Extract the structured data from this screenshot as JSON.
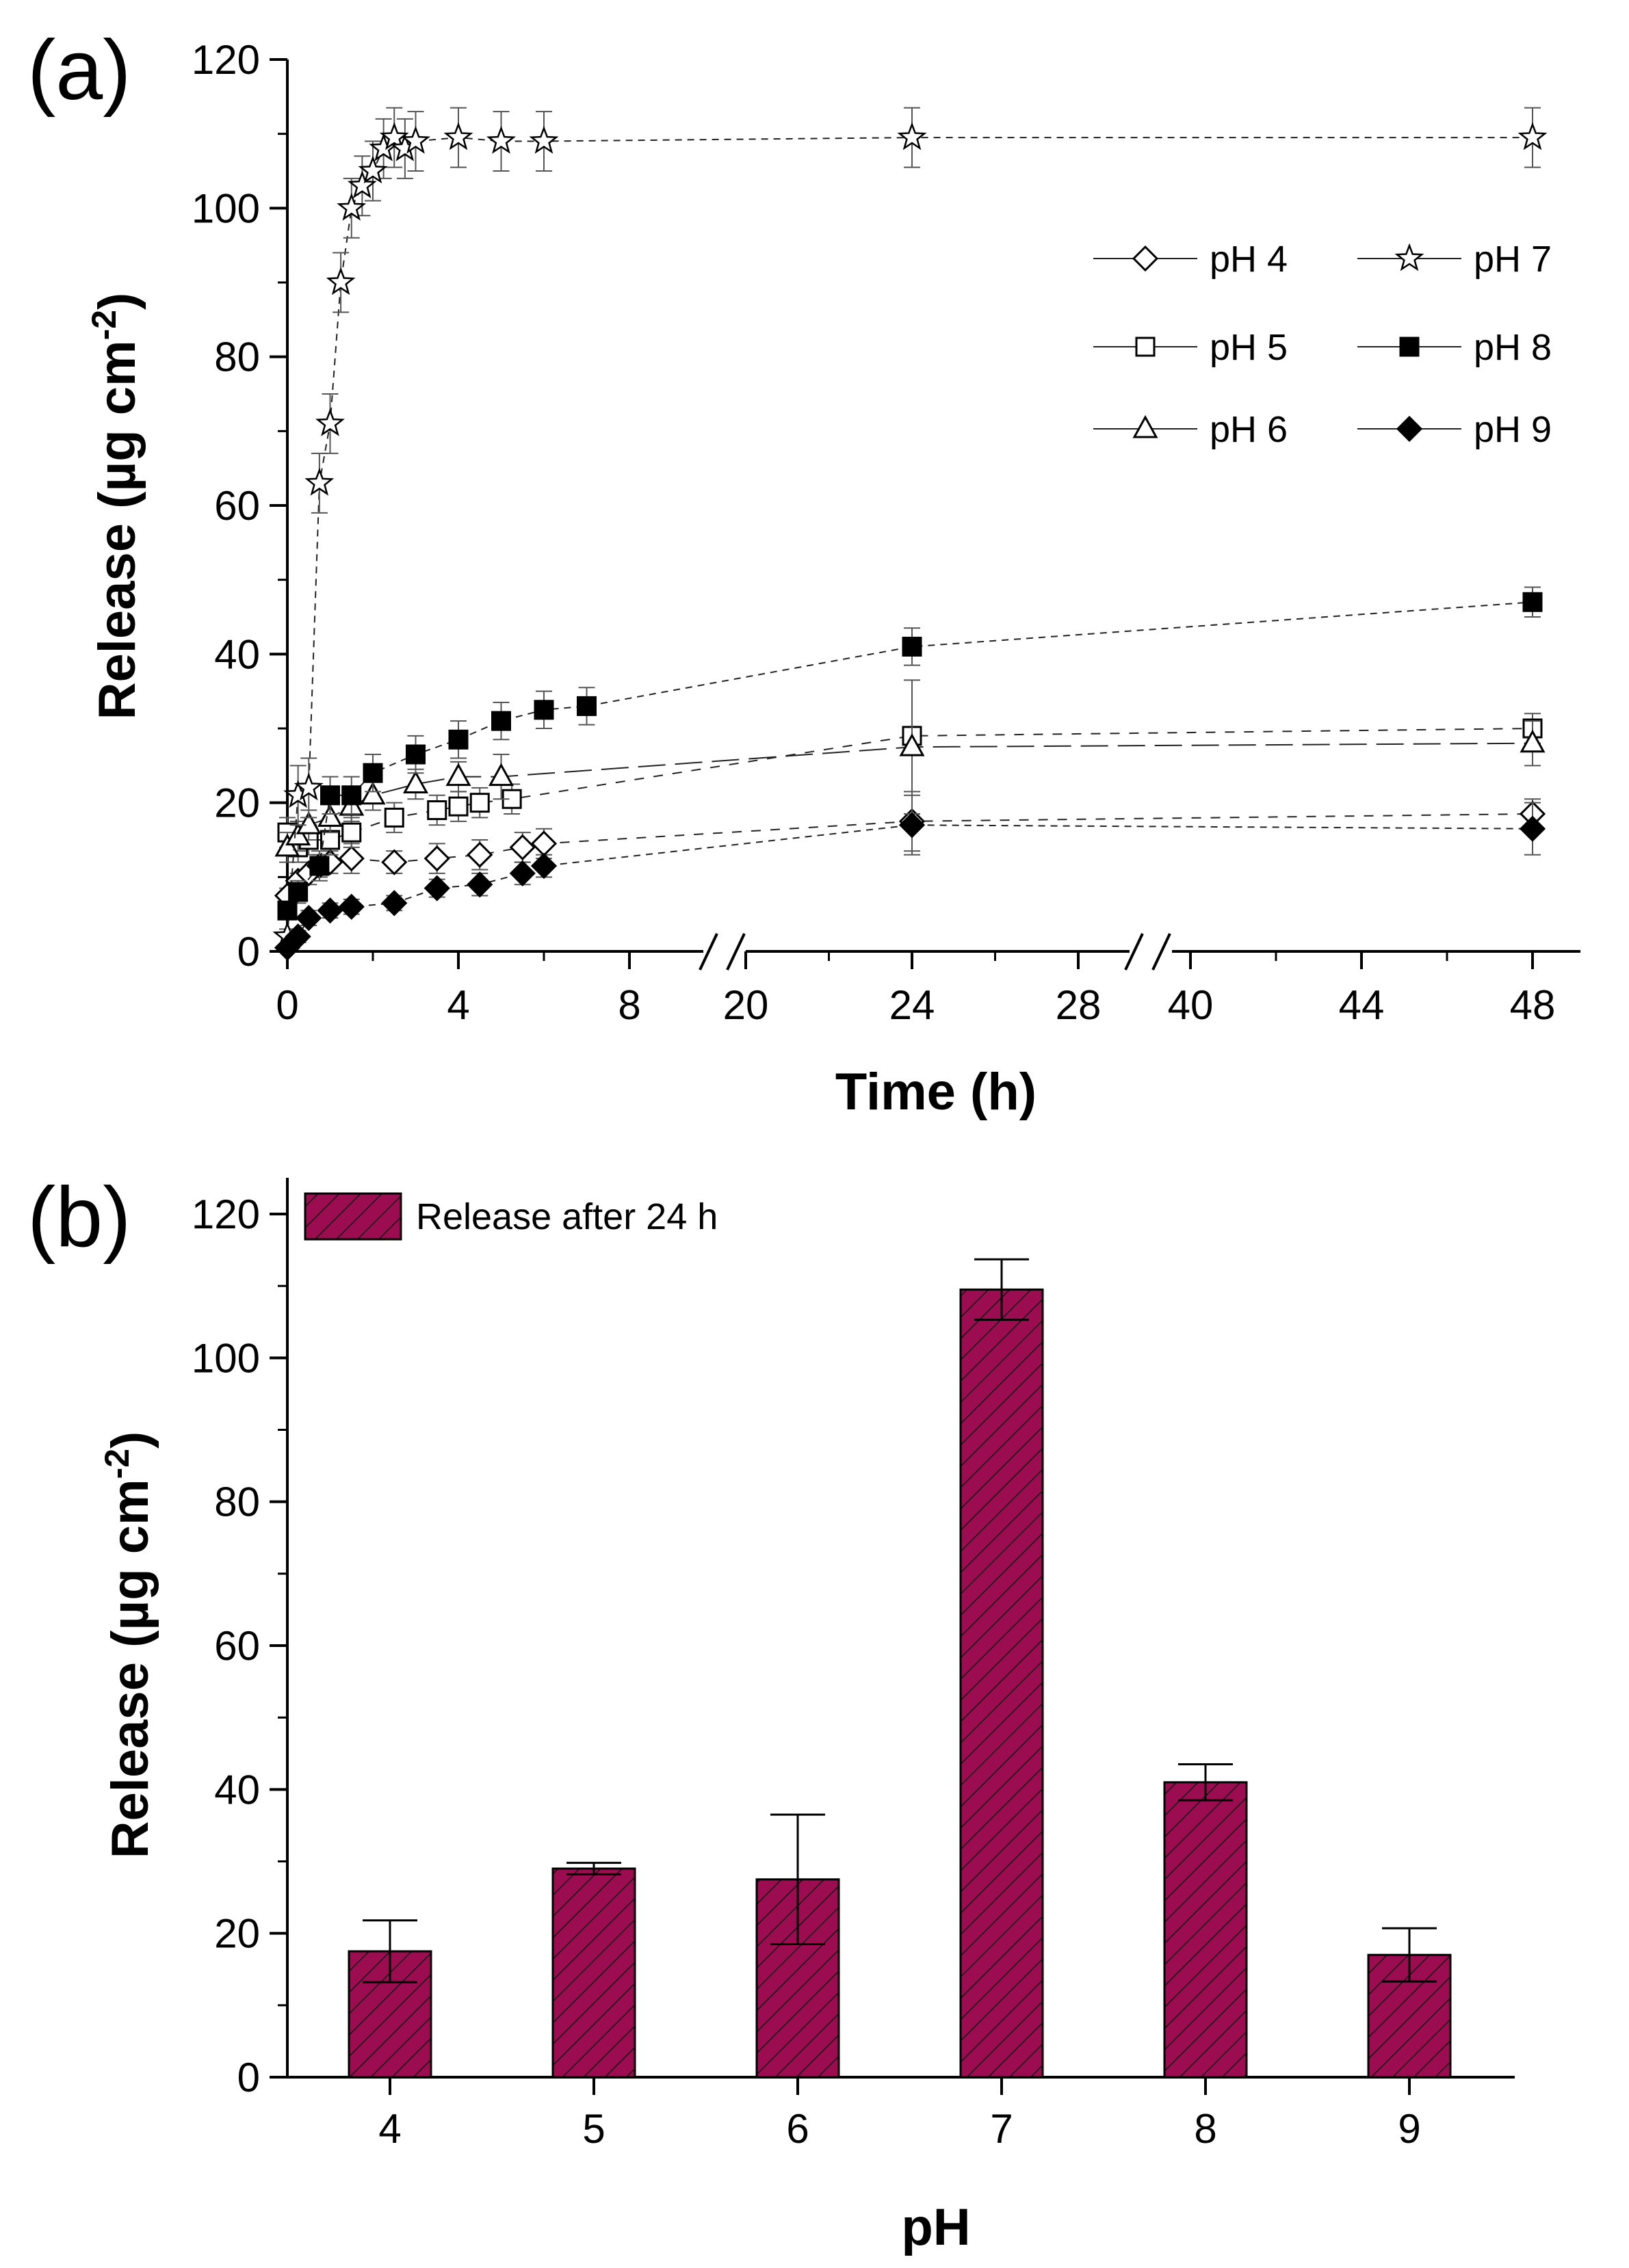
{
  "colors": {
    "bar_fill": "#9c0c50",
    "axis": "#000000",
    "background": "#ffffff"
  },
  "chart_data": [
    {
      "panel": "(a)",
      "type": "line",
      "xlabel": "Time (h)",
      "ylabel": "Release (µg cm-2)",
      "ylabel_main": "Release (µg cm",
      "ylabel_sup": "-2",
      "ylabel_close": ")",
      "ylim": [
        0,
        120
      ],
      "yticks": [
        "0",
        "20",
        "40",
        "60",
        "80",
        "100",
        "120"
      ],
      "x_broken_axis": true,
      "x_segments": [
        {
          "range": [
            0,
            8
          ],
          "ticks": [
            "0",
            "4",
            "8"
          ]
        },
        {
          "range": [
            20,
            28
          ],
          "ticks": [
            "20",
            "24",
            "28"
          ]
        },
        {
          "range": [
            40,
            48
          ],
          "ticks": [
            "40",
            "44",
            "48"
          ]
        }
      ],
      "legend_columns": 2,
      "series": [
        {
          "name": "pH 4",
          "marker": "diamond-open",
          "x": [
            0,
            0.25,
            0.5,
            0.75,
            1,
            1.5,
            2.5,
            3.5,
            4.5,
            5.5,
            6,
            24,
            48
          ],
          "y": [
            7.5,
            9.5,
            10.5,
            11.5,
            12,
            12.5,
            12,
            12.5,
            13,
            14,
            14.5,
            17.5,
            18.5
          ],
          "err": [
            1,
            1,
            1.5,
            1.5,
            1.5,
            2,
            1.5,
            2,
            2,
            2,
            2,
            4,
            2
          ]
        },
        {
          "name": "pH 5",
          "marker": "square-open",
          "x": [
            0,
            0.25,
            0.5,
            1,
            1.5,
            2.5,
            3.5,
            4,
            4.5,
            5.25,
            24,
            48
          ],
          "y": [
            16,
            14,
            15,
            15,
            16,
            18,
            19,
            19.5,
            20,
            20.5,
            29,
            30
          ],
          "err": [
            2,
            2,
            2,
            2,
            2,
            2,
            2,
            2,
            2,
            2,
            0.8,
            2
          ]
        },
        {
          "name": "pH 6",
          "marker": "triangle-open",
          "x": [
            0,
            0.25,
            0.5,
            1,
            1.5,
            2,
            3,
            4,
            5,
            24,
            48
          ],
          "y": [
            14,
            15.5,
            17,
            18,
            19.5,
            21,
            22.5,
            23.5,
            23.5,
            27.5,
            28
          ],
          "err": [
            2,
            2,
            2,
            2,
            2,
            2,
            2,
            2,
            3,
            9,
            3
          ]
        },
        {
          "name": "pH 7",
          "marker": "star-open",
          "x": [
            0,
            0.25,
            0.5,
            0.75,
            1,
            1.25,
            1.5,
            1.75,
            2,
            2.25,
            2.5,
            2.75,
            3,
            4,
            5,
            6,
            24,
            48
          ],
          "y": [
            2,
            21,
            22,
            63,
            71,
            90,
            100,
            103,
            105,
            108,
            109.5,
            108,
            109,
            109.5,
            109,
            109,
            109.5,
            109.5
          ],
          "err": [
            1,
            4,
            4,
            4,
            4,
            4,
            4,
            4,
            4,
            4,
            4,
            4,
            4,
            4,
            4,
            4,
            4,
            4
          ]
        },
        {
          "name": "pH 8",
          "marker": "square-filled",
          "x": [
            0,
            0.25,
            0.75,
            1,
            1.5,
            2,
            3,
            4,
            5,
            6,
            7,
            24,
            48
          ],
          "y": [
            5.5,
            8,
            11.5,
            21,
            21,
            24,
            26.5,
            28.5,
            31,
            32.5,
            33,
            41,
            47
          ],
          "err": [
            1,
            1.5,
            2,
            2.5,
            2.5,
            2.5,
            2.5,
            2.5,
            2.5,
            2.5,
            2.5,
            2.5,
            2
          ]
        },
        {
          "name": "pH 9",
          "marker": "diamond-filled",
          "x": [
            0,
            0.25,
            0.5,
            1,
            1.5,
            2.5,
            3.5,
            4.5,
            5.5,
            6,
            24,
            48
          ],
          "y": [
            0.5,
            2,
            4.5,
            5.5,
            6,
            6.5,
            8.5,
            9,
            10.5,
            11.5,
            17,
            16.5
          ],
          "err": [
            0.5,
            0.8,
            1,
            1,
            1,
            1,
            1.2,
            1.5,
            1.5,
            1.5,
            4,
            3.5
          ]
        }
      ]
    },
    {
      "panel": "(b)",
      "type": "bar",
      "xlabel": "pH",
      "ylabel": "Release (µg cm-2)",
      "ylabel_main": "Release (µg cm",
      "ylabel_sup": "-2",
      "ylabel_close": ")",
      "ylim": [
        0,
        125
      ],
      "yticks": [
        "0",
        "20",
        "40",
        "60",
        "80",
        "100",
        "120"
      ],
      "categories": [
        "4",
        "5",
        "6",
        "7",
        "8",
        "9"
      ],
      "values": [
        17.5,
        29,
        27.5,
        109.5,
        41,
        17
      ],
      "errors": [
        4.3,
        0.8,
        9,
        4.2,
        2.5,
        3.7
      ],
      "legend": "Release after 24 h",
      "fill": "hatched"
    }
  ]
}
